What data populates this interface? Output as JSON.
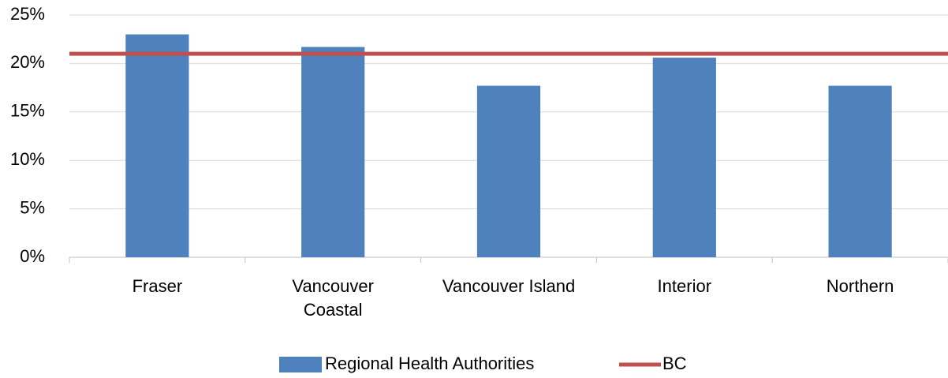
{
  "chart_data": {
    "type": "bar",
    "categories": [
      "Fraser",
      "Vancouver Coastal",
      "Vancouver Island",
      "Interior",
      "Northern"
    ],
    "series": [
      {
        "name": "Regional Health Authorities",
        "color": "#4f81bd",
        "values": [
          23,
          21.7,
          17.7,
          20.6,
          17.7
        ]
      }
    ],
    "reference_line": {
      "name": "BC",
      "value": 21,
      "color": "#c0504d"
    },
    "ylim": [
      0,
      25
    ],
    "yticks": [
      {
        "value": 0,
        "label": "0%"
      },
      {
        "value": 5,
        "label": "5%"
      },
      {
        "value": 10,
        "label": "10%"
      },
      {
        "value": 15,
        "label": "15%"
      },
      {
        "value": 20,
        "label": "20%"
      },
      {
        "value": 25,
        "label": "25%"
      }
    ],
    "grid": true,
    "legend": "bottom"
  }
}
